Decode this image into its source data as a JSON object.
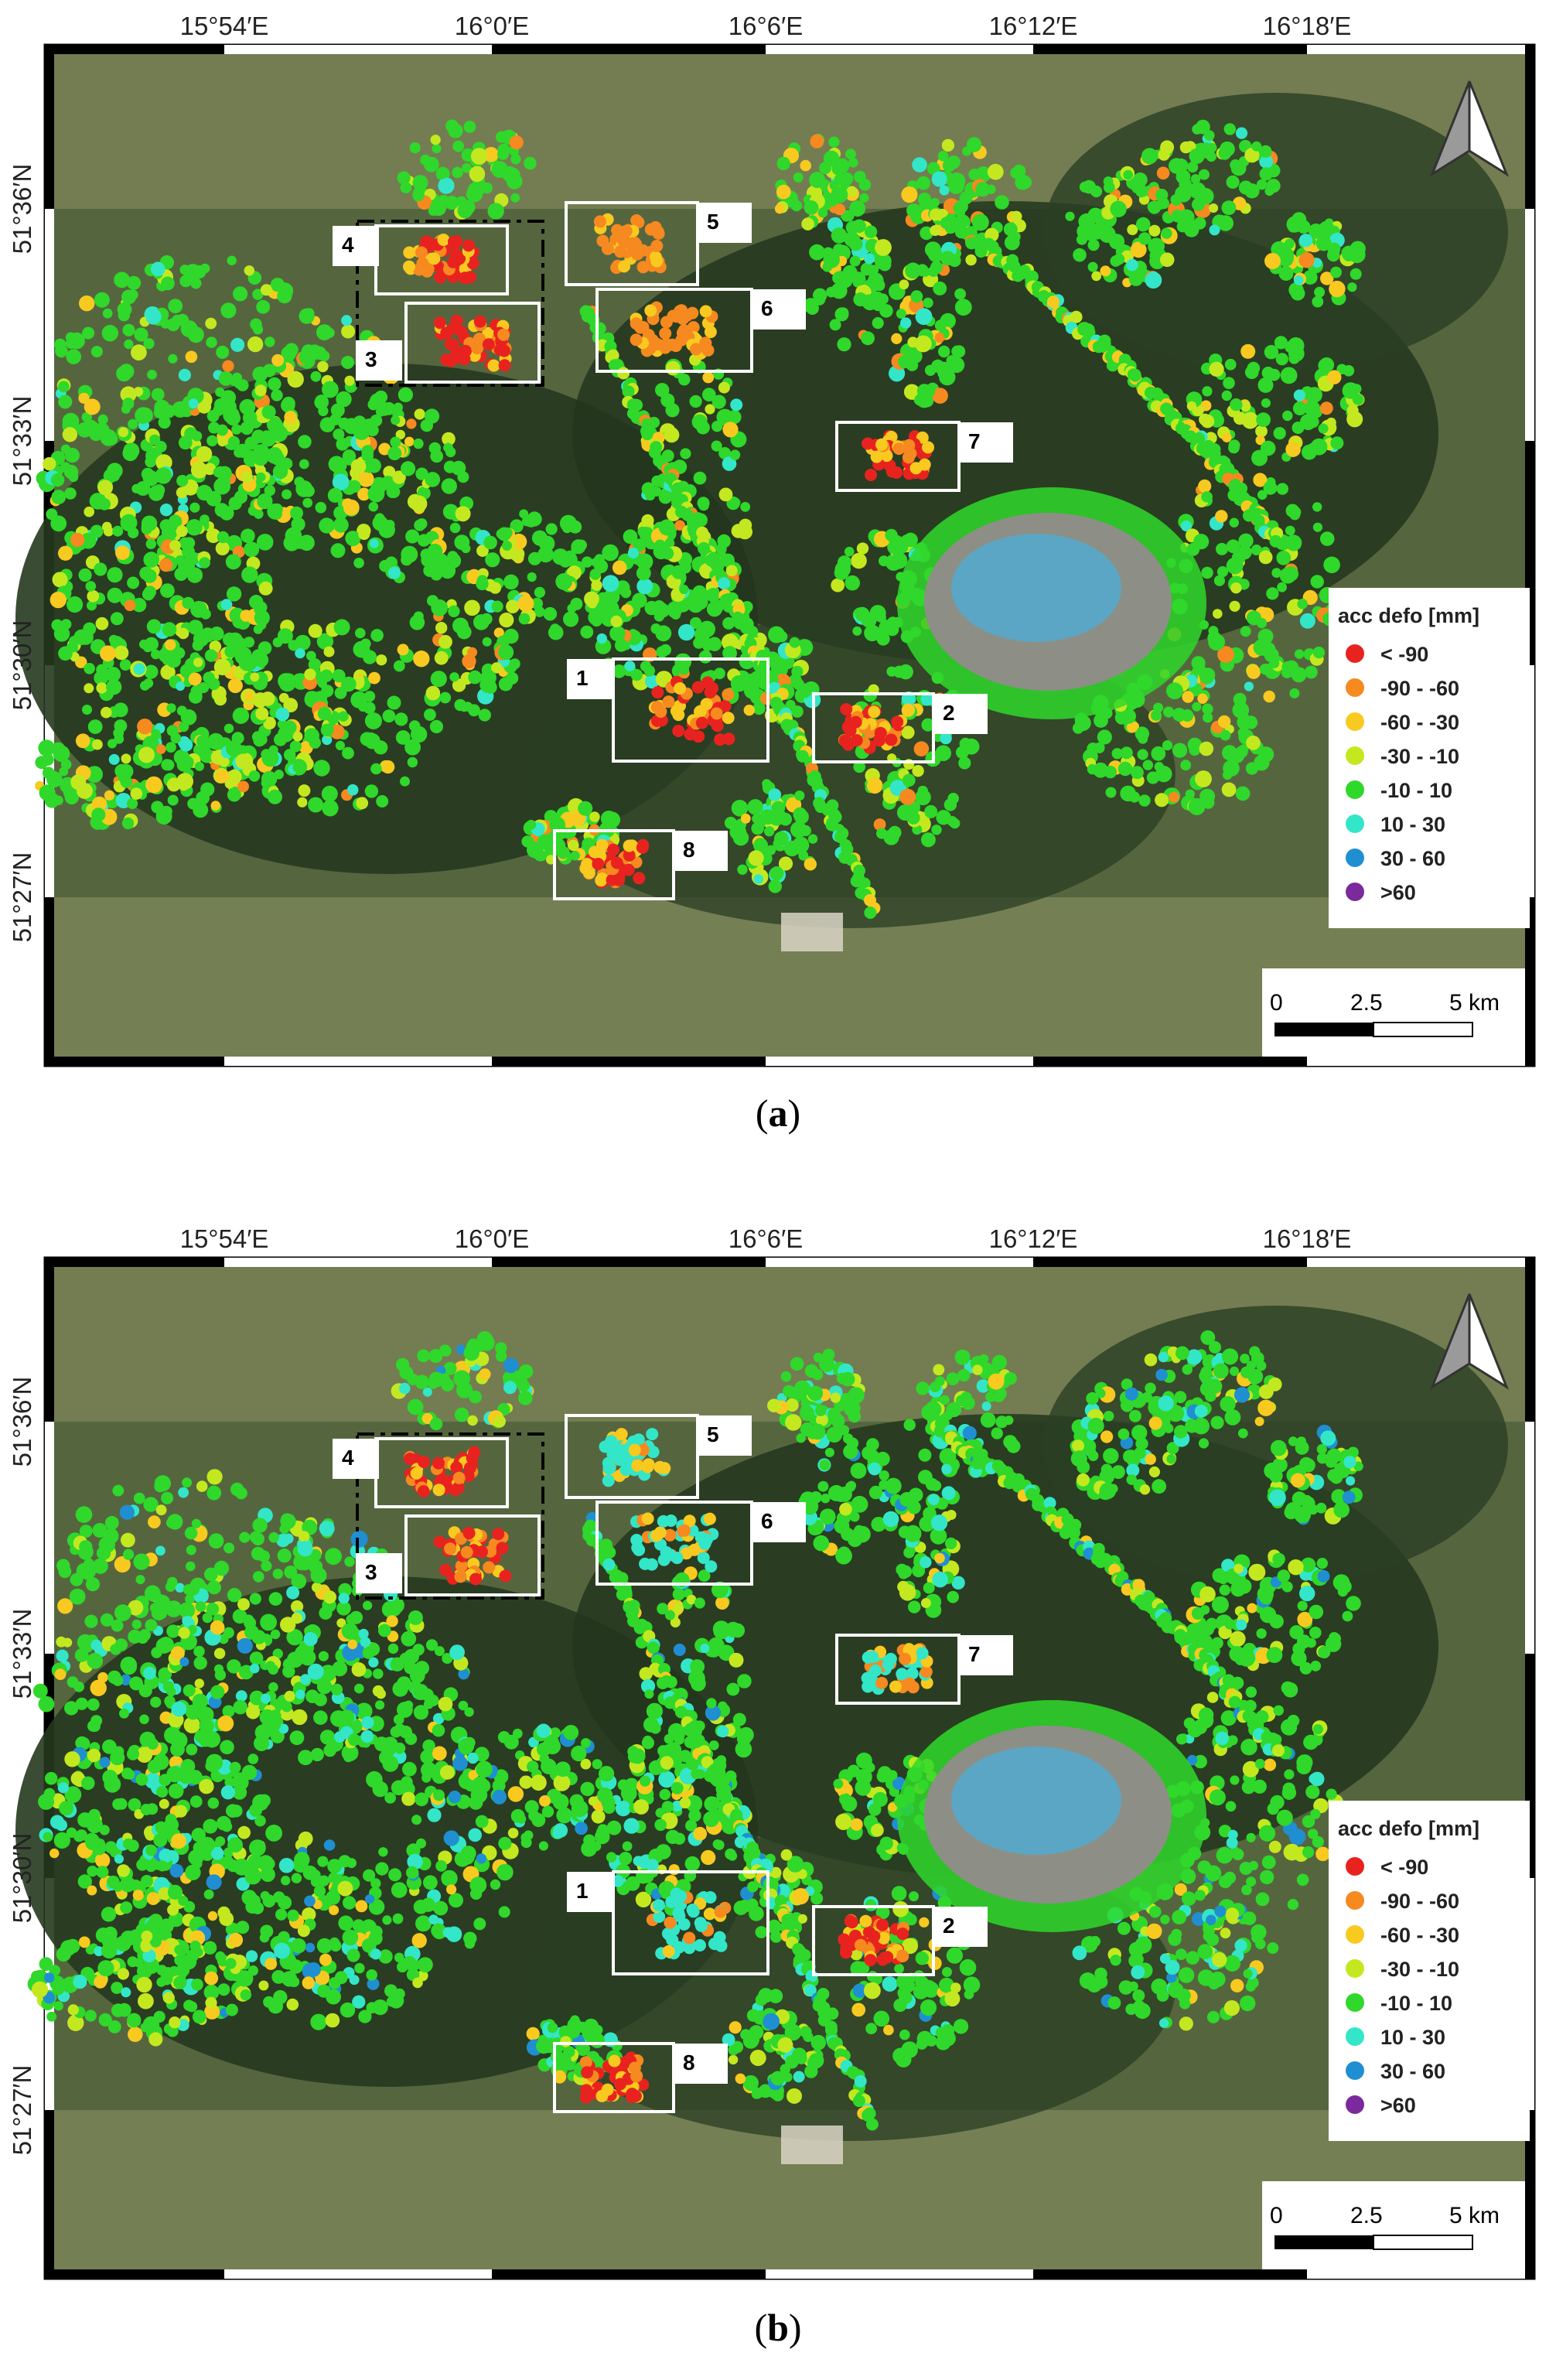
{
  "panels": [
    {
      "caption": "a",
      "lon_ticks": [
        "15°54′E",
        "16°0′E",
        "16°6′E",
        "16°12′E",
        "16°18′E"
      ],
      "lat_ticks": [
        "51°36′N",
        "51°33′N",
        "51°30′N",
        "51°27′N"
      ],
      "areas": [
        "1",
        "2",
        "3",
        "4",
        "5",
        "6",
        "7",
        "8"
      ],
      "hot_spots": {
        "1": "red",
        "2": "red",
        "3": "red",
        "4": "red",
        "5": "orange",
        "6": "orange",
        "7": "red",
        "8": "red"
      }
    },
    {
      "caption": "b",
      "lon_ticks": [
        "15°54′E",
        "16°0′E",
        "16°6′E",
        "16°12′E",
        "16°18′E"
      ],
      "lat_ticks": [
        "51°36′N",
        "51°33′N",
        "51°30′N",
        "51°27′N"
      ],
      "areas": [
        "1",
        "2",
        "3",
        "4",
        "5",
        "6",
        "7",
        "8"
      ],
      "hot_spots": {
        "1": "cyan",
        "2": "red",
        "3": "red",
        "4": "red",
        "5": "cyan",
        "6": "cyan",
        "7": "cyan",
        "8": "red"
      }
    }
  ],
  "legend": {
    "title": "acc defo [mm]",
    "classes": [
      {
        "label": "< -90",
        "color": "#e8231f"
      },
      {
        "label": "-90 - -60",
        "color": "#f6891f"
      },
      {
        "label": "-60 - -30",
        "color": "#f8c91f"
      },
      {
        "label": "-30 - -10",
        "color": "#c4e81f"
      },
      {
        "label": "-10 - 10",
        "color": "#2fd82a"
      },
      {
        "label": "10 - 30",
        "color": "#33e6c8"
      },
      {
        "label": "30 - 60",
        "color": "#1f8fd2"
      },
      {
        "label": ">60",
        "color": "#7a2a9c"
      }
    ]
  },
  "scale_bar": {
    "labels": [
      "0",
      "2.5",
      "5 km"
    ]
  },
  "colors": {
    "background_forest": "#2c4026",
    "background_field": "#6b7a4c",
    "lake": "#5aa6c4"
  }
}
